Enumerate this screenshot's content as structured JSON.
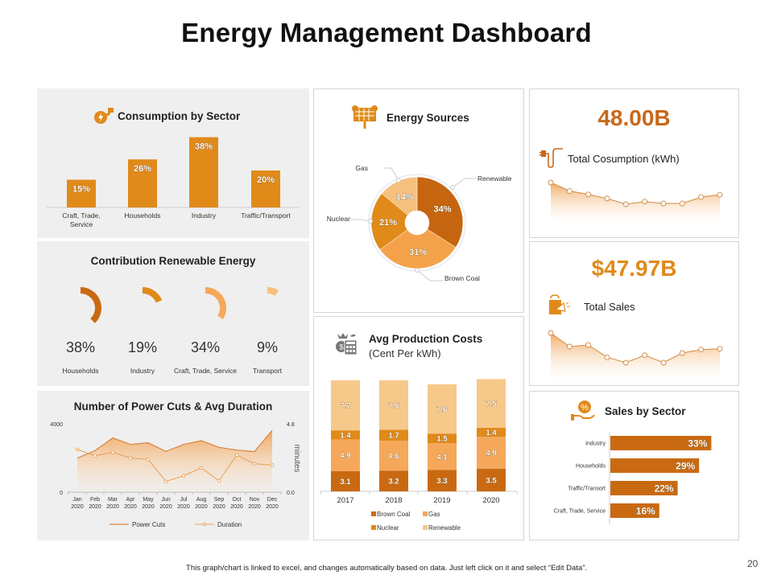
{
  "title": "Energy Management Dashboard",
  "footer": "This graph/chart is linked to excel, and changes automatically based on data. Just left click on it and select “Edit Data”.",
  "page_number": "20",
  "colors": {
    "accent_dark": "#c5650f",
    "accent": "#e08a1a",
    "accent_light": "#f4a24a",
    "accent_pale": "#f6c88a",
    "panel_gray": "#efefef"
  },
  "icons": {
    "consumption": "plug-bolt-icon",
    "energy_sources": "solar-panel-icon",
    "production_costs": "money-calculator-icon",
    "total_consumption": "plug-cable-icon",
    "total_sales": "shopping-bag-megaphone-icon",
    "sales_by_sector": "hand-percent-icon"
  },
  "chart_data": [
    {
      "type": "bar",
      "title": "Consumption by Sector",
      "categories": [
        "Craft, Trade, Service",
        "Households",
        "Industry",
        "Traffic/Transport"
      ],
      "values": [
        15,
        26,
        38,
        20
      ],
      "data_labels": [
        "15%",
        "26%",
        "38%",
        "20%"
      ],
      "unit": "%",
      "grid": false
    },
    {
      "type": "pie",
      "variant": "partial-ring",
      "title": "Contribution Renewable Energy",
      "categories": [
        "Households",
        "Industry",
        "Craft, Trade, Service",
        "Transport"
      ],
      "values": [
        38,
        19,
        34,
        9
      ],
      "data_labels": [
        "38%",
        "19%",
        "34%",
        "9%"
      ]
    },
    {
      "type": "line",
      "title": "Number of Power Cuts & Avg Duration",
      "categories": [
        [
          "Jan",
          "2020"
        ],
        [
          "Feb",
          "2020"
        ],
        [
          "Mar",
          "2020"
        ],
        [
          "Apr",
          "2020"
        ],
        [
          "May",
          "2020"
        ],
        [
          "Jun",
          "2020"
        ],
        [
          "Jul",
          "2020"
        ],
        [
          "Aug",
          "2020"
        ],
        [
          "Sep",
          "2020"
        ],
        [
          "Oct",
          "2020"
        ],
        [
          "Nov",
          "2020"
        ],
        [
          "Dec",
          "2020"
        ]
      ],
      "series": [
        {
          "name": "Power Cuts",
          "axis": "left",
          "style": "area",
          "values": [
            1990,
            2430,
            3170,
            2790,
            2890,
            2380,
            2790,
            3010,
            2620,
            2460,
            2370,
            3610
          ]
        },
        {
          "name": "Duration",
          "axis": "right",
          "style": "line-markers",
          "values": [
            3.0,
            2.55,
            2.8,
            2.4,
            2.3,
            0.75,
            1.15,
            1.7,
            0.8,
            2.6,
            2.0,
            1.9
          ]
        }
      ],
      "ylim": [
        0,
        4000
      ],
      "y2lim": [
        0,
        4.8
      ],
      "y_ticks": [
        "4000",
        "0"
      ],
      "y2_ticks": [
        "4.8",
        "0.0"
      ],
      "y2label": "minutes",
      "legend": "bottom",
      "grid": false
    },
    {
      "type": "pie",
      "variant": "donut",
      "title": "Energy Sources",
      "categories": [
        "Renewable",
        "Brown Coal",
        "Nuclear",
        "Gas"
      ],
      "values": [
        34,
        31,
        21,
        14
      ],
      "data_labels": [
        "34%",
        "31%",
        "21%",
        "14%"
      ],
      "colors": [
        "#c5650f",
        "#f4a24a",
        "#e08a1a",
        "#f6c07e"
      ]
    },
    {
      "type": "bar",
      "variant": "stacked",
      "title": "Avg Production Costs",
      "subtitle": "(Cent Per kWh)",
      "categories": [
        "2017",
        "2018",
        "2019",
        "2020"
      ],
      "series": [
        {
          "name": "Brown Coal",
          "values": [
            3.1,
            3.2,
            3.3,
            3.5
          ],
          "labels": [
            "3.1",
            "3.2",
            "3.3",
            "3.5"
          ],
          "color": "#c96a12"
        },
        {
          "name": "Gas",
          "values": [
            4.9,
            4.6,
            4.1,
            4.9
          ],
          "labels": [
            "4.9",
            "4.6",
            "4.1",
            "4.9"
          ],
          "color": "#f5a85a"
        },
        {
          "name": "Nuclear",
          "values": [
            1.4,
            1.7,
            1.5,
            1.4
          ],
          "labels": [
            "1.4",
            "1.7",
            "1.5",
            "1.4"
          ],
          "color": "#e08a1a"
        },
        {
          "name": "Renewable",
          "values": [
            7.7,
            7.6,
            7.6,
            7.5
          ],
          "labels": [
            "7.7",
            "7.6",
            "7.6",
            "7.5"
          ],
          "color": "#f6c88a"
        }
      ],
      "legend": "bottom",
      "grid": false
    },
    {
      "type": "area",
      "kpi": "48.00B",
      "label": "Total Cosumption (kWh)",
      "values": [
        15.2,
        12.0,
        10.7,
        9.2,
        7.0,
        8.0,
        7.3,
        7.3,
        9.7,
        10.6
      ],
      "color": "#c8681a"
    },
    {
      "type": "area",
      "kpi": "$47.97B",
      "label": "Total Sales",
      "values": [
        15.0,
        9.9,
        10.5,
        5.9,
        3.9,
        6.7,
        3.9,
        7.5,
        8.8,
        9.1
      ],
      "color": "#e08a1a"
    },
    {
      "type": "bar",
      "variant": "horizontal",
      "title": "Sales by Sector",
      "categories": [
        "Industry",
        "Households",
        "Traffic/Transort",
        "Craft, Trade, Service"
      ],
      "values": [
        33,
        29,
        22,
        16
      ],
      "data_labels": [
        "33%",
        "29%",
        "22%",
        "16%"
      ],
      "color": "#c96a12"
    }
  ]
}
